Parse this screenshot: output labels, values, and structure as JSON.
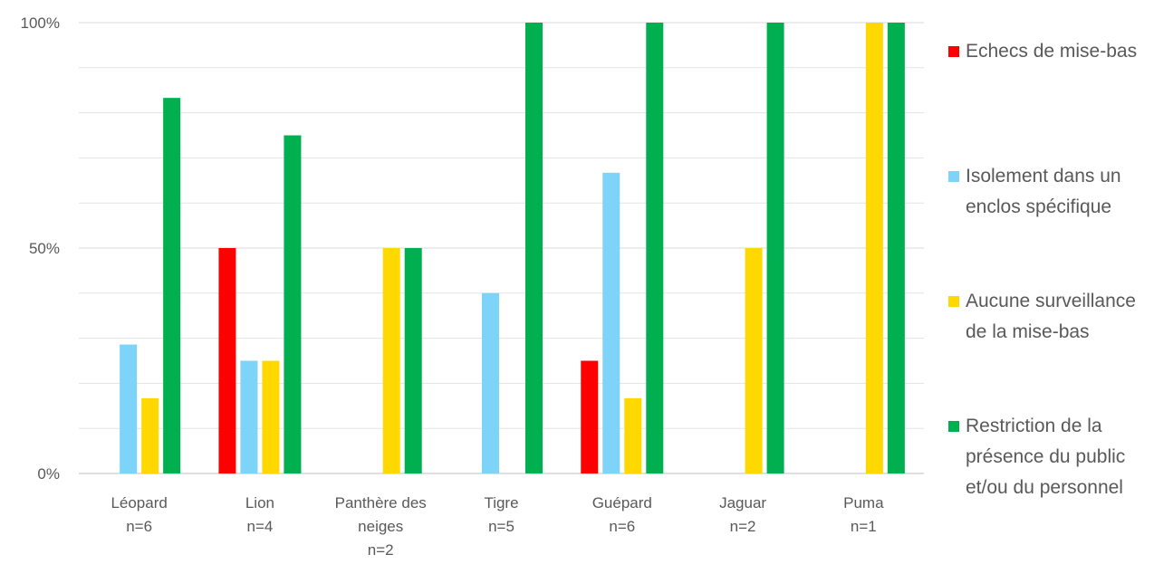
{
  "chart_data": {
    "type": "bar",
    "categories": [
      [
        "Léopard",
        "n=6"
      ],
      [
        "Lion",
        "n=4"
      ],
      [
        "Panthère des",
        "neiges",
        "n=2"
      ],
      [
        "Tigre",
        "n=5"
      ],
      [
        "Guépard",
        "n=6"
      ],
      [
        "Jaguar",
        "n=2"
      ],
      [
        "Puma",
        "n=1"
      ]
    ],
    "series": [
      {
        "name": "Echecs de mise-bas",
        "color": "#ff0000",
        "values": [
          0,
          50,
          0,
          0,
          25,
          0,
          0
        ]
      },
      {
        "name": "Isolement dans un enclos spécifique",
        "color": "#7dd3f8",
        "values": [
          28.6,
          25,
          0,
          40,
          66.7,
          0,
          0
        ]
      },
      {
        "name": "Aucune surveillance de la mise-bas",
        "color": "#ffd800",
        "values": [
          16.7,
          25,
          50,
          0,
          16.7,
          50,
          100
        ]
      },
      {
        "name": "Restriction de la présence du public et/ou du personnel",
        "color": "#00b050",
        "values": [
          83.3,
          75,
          50,
          100,
          100,
          100,
          100
        ]
      }
    ],
    "ylim": [
      0,
      100
    ],
    "yticks": [
      {
        "value": 0,
        "label": "0%"
      },
      {
        "value": 50,
        "label": "50%"
      },
      {
        "value": 100,
        "label": "100%"
      }
    ],
    "minor_gridlines": [
      10,
      20,
      30,
      40,
      60,
      70,
      80,
      90
    ],
    "grid": true,
    "legend": "right"
  }
}
